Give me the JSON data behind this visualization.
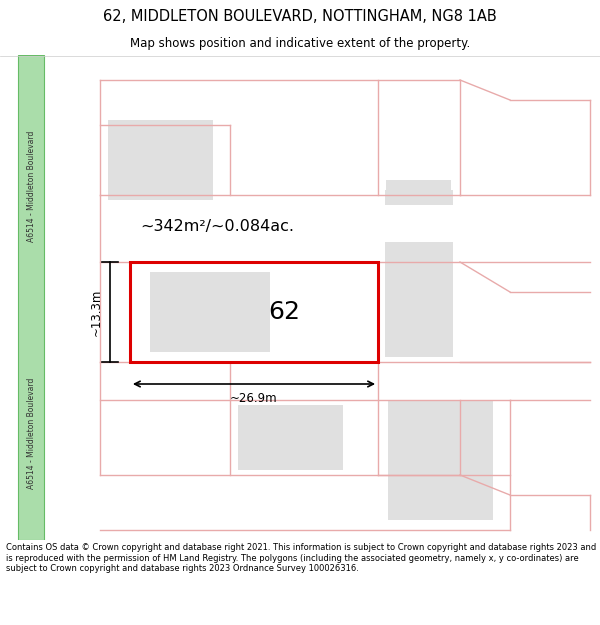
{
  "title_line1": "62, MIDDLETON BOULEVARD, NOTTINGHAM, NG8 1AB",
  "title_line2": "Map shows position and indicative extent of the property.",
  "footer_text": "Contains OS data © Crown copyright and database right 2021. This information is subject to Crown copyright and database rights 2023 and is reproduced with the permission of HM Land Registry. The polygons (including the associated geometry, namely x, y co-ordinates) are subject to Crown copyright and database rights 2023 Ordnance Survey 100026316.",
  "bg_color": "#ffffff",
  "road_strip_color": "#aaddaa",
  "road_border_color": "#66bb66",
  "pink_line_color": "#e8aaaa",
  "gray_fill_color": "#e0e0e0",
  "red_outline_color": "#dd0000",
  "area_label": "~342m²/~0.084ac.",
  "width_label": "~26.9m",
  "height_label": "~13.3m",
  "house_number": "62",
  "road_label": "A6514 - Middleton Boulevard"
}
